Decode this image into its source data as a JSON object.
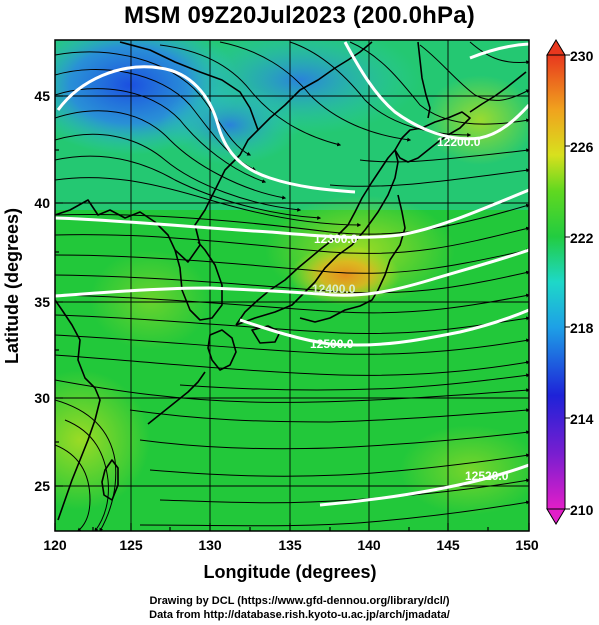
{
  "title": "MSM 09Z20Jul2023 (200.0hPa)",
  "axes": {
    "xlabel": "Longitude (degrees)",
    "ylabel": "Latitude  (degrees)",
    "x_ticks": [
      "120",
      "125",
      "130",
      "135",
      "140",
      "145",
      "150"
    ],
    "y_ticks": [
      "45",
      "40",
      "35",
      "30",
      "25"
    ]
  },
  "colorbar": {
    "ticks": [
      "230",
      "226",
      "222",
      "218",
      "214",
      "210"
    ],
    "min": 210,
    "max": 230
  },
  "contours": [
    {
      "label": "12200.0"
    },
    {
      "label": "12300.0"
    },
    {
      "label": "12400.0"
    },
    {
      "label": "12500.0"
    },
    {
      "label": "12520.0"
    }
  ],
  "credits": {
    "line1": "Drawing by DCL (https://www.gfd-dennou.org/library/dcl/)",
    "line2": "Data from http://database.rish.kyoto-u.ac.jp/arch/jmadata/"
  },
  "colors": {
    "cold": "#1e5ae0",
    "cool": "#1fd0d8",
    "mid": "#22c832",
    "warm": "#e0e21e",
    "hot": "#ee8a1c",
    "contour": "#ffffff",
    "coast": "#000000"
  }
}
